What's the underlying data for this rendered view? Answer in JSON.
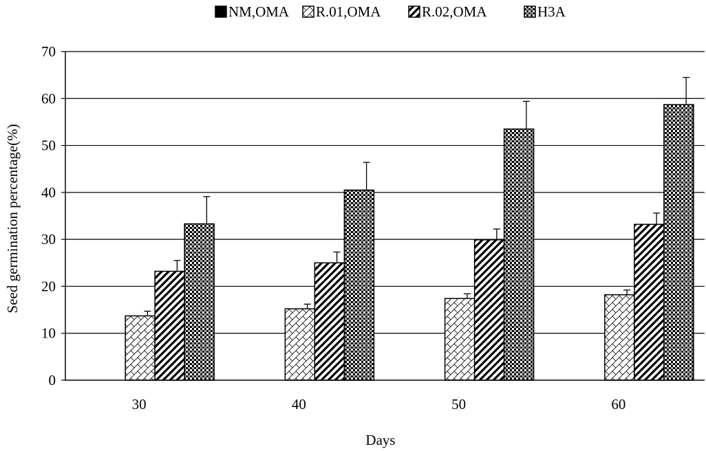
{
  "chart_data": {
    "type": "bar",
    "title": "",
    "xlabel": "Days",
    "ylabel": "Seed germination percentage(%)",
    "categories": [
      "30",
      "40",
      "50",
      "60"
    ],
    "ylim": [
      0,
      70
    ],
    "yticks": [
      0,
      10,
      20,
      30,
      40,
      50,
      60,
      70
    ],
    "grid": true,
    "legend_position": "top",
    "series": [
      {
        "name": "NM,OMA",
        "pattern": "solid-black",
        "values": [
          0,
          0,
          0,
          0
        ],
        "errors": [
          0,
          0,
          0,
          0
        ]
      },
      {
        "name": "R.01,OMA",
        "pattern": "light-crosshatch",
        "values": [
          13.7,
          15.2,
          17.4,
          18.2
        ],
        "errors": [
          1.0,
          1.0,
          1.0,
          1.0
        ]
      },
      {
        "name": "R.02,OMA",
        "pattern": "diagonal-stripes",
        "values": [
          23.2,
          25.0,
          29.9,
          33.2
        ],
        "errors": [
          2.3,
          2.3,
          2.3,
          2.4
        ]
      },
      {
        "name": "H3A",
        "pattern": "dense-checker",
        "values": [
          33.3,
          40.5,
          53.5,
          58.7
        ],
        "errors": [
          5.8,
          5.9,
          5.9,
          5.8
        ]
      }
    ]
  }
}
